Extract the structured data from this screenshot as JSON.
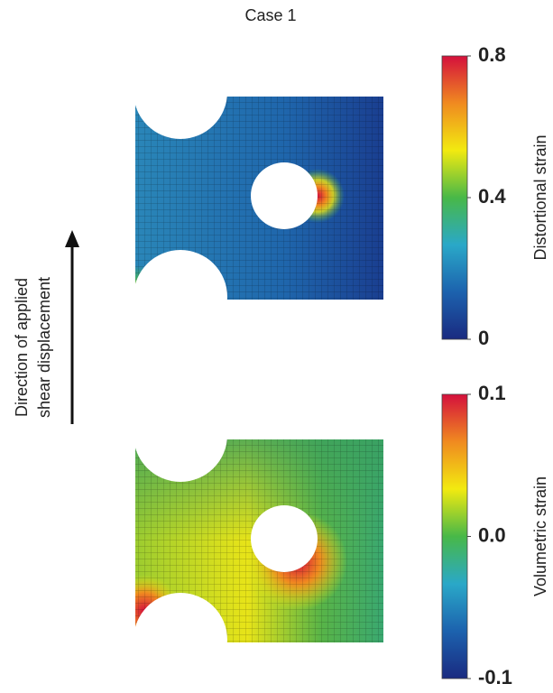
{
  "title": "Case 1",
  "arrow_label": [
    "Direction of applied",
    "shear displacement"
  ],
  "colormap": [
    "#d4103c",
    "#f08a20",
    "#f2ea10",
    "#48b848",
    "#2aa8c8",
    "#1c62ae",
    "#1a2a80"
  ],
  "panels": [
    {
      "colorbar": {
        "label": "Distortional strain",
        "lim": [
          0,
          0.8
        ],
        "ticks": [
          0,
          0.4,
          0.8
        ]
      }
    },
    {
      "colorbar": {
        "label": "Volumetric strain",
        "lim": [
          -0.1,
          0.1
        ],
        "ticks": [
          -0.1,
          {
            "value": 0,
            "label": "0.0"
          },
          0.1
        ]
      }
    }
  ]
}
